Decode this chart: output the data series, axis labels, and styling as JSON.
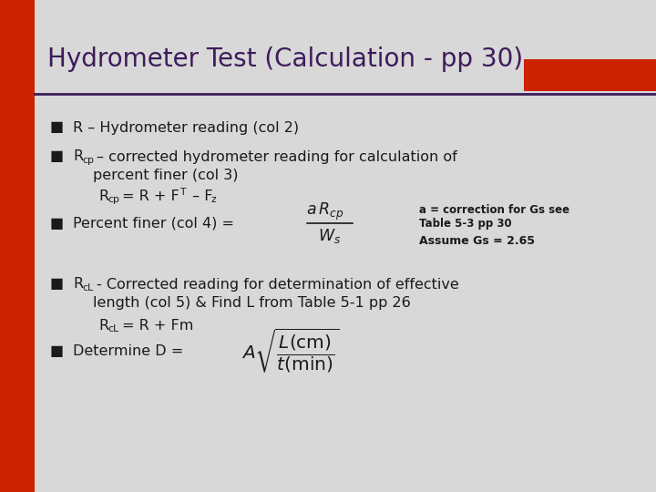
{
  "title": "Hydrometer Test (Calculation - pp 30)",
  "title_color": "#3d1c5a",
  "title_fontsize": 20,
  "bg_color": "#D8D8D8",
  "left_bar_color": "#CC2200",
  "top_bar_color": "#CC2200",
  "line_color": "#3d1c5a",
  "text_color": "#1a1a1a",
  "bullet_color": "#1a1a1a",
  "annotation_line1": "a = correction for Gs see",
  "annotation_line2": "Table 5-3 pp 30",
  "annotation_line3": "Assume Gs = 2.65"
}
